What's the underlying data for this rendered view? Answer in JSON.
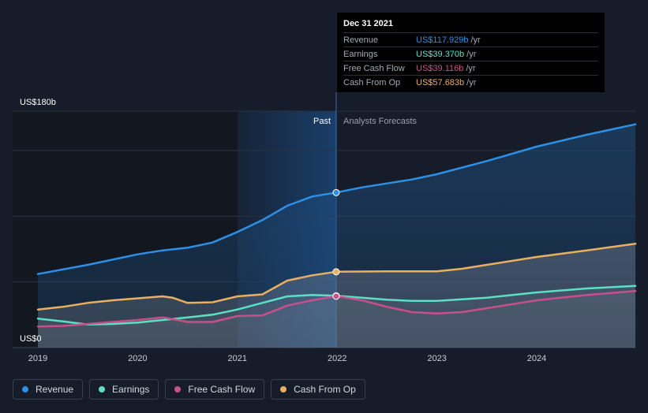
{
  "chart_data": {
    "type": "area",
    "x_ticks": [
      "2019",
      "2020",
      "2021",
      "2022",
      "2023",
      "2024"
    ],
    "y_labels": {
      "top": "US$180b",
      "bottom": "US$0"
    },
    "ylim": [
      0,
      180
    ],
    "past_label": "Past",
    "forecast_label": "Analysts Forecasts",
    "divider_date": 2021.99,
    "series": [
      {
        "name": "Revenue",
        "color": "#2d8fe6",
        "points": [
          [
            2019.0,
            56
          ],
          [
            2019.5,
            63
          ],
          [
            2020.0,
            71
          ],
          [
            2020.25,
            74
          ],
          [
            2020.5,
            76
          ],
          [
            2020.75,
            80
          ],
          [
            2021.0,
            88
          ],
          [
            2021.25,
            97
          ],
          [
            2021.5,
            108
          ],
          [
            2021.75,
            115
          ],
          [
            2021.99,
            118
          ],
          [
            2022.25,
            122
          ],
          [
            2022.5,
            125
          ],
          [
            2022.75,
            128
          ],
          [
            2023.0,
            132
          ],
          [
            2023.5,
            142
          ],
          [
            2024.0,
            153
          ],
          [
            2024.5,
            162
          ],
          [
            2024.99,
            170
          ]
        ]
      },
      {
        "name": "Earnings",
        "color": "#5be0c4",
        "points": [
          [
            2019.0,
            22
          ],
          [
            2019.25,
            20
          ],
          [
            2019.5,
            17.5
          ],
          [
            2019.75,
            18
          ],
          [
            2020.0,
            19
          ],
          [
            2020.25,
            21
          ],
          [
            2020.5,
            23
          ],
          [
            2020.75,
            25
          ],
          [
            2021.0,
            29
          ],
          [
            2021.25,
            34
          ],
          [
            2021.5,
            39
          ],
          [
            2021.75,
            40
          ],
          [
            2021.99,
            39.4
          ],
          [
            2022.25,
            38
          ],
          [
            2022.5,
            36.5
          ],
          [
            2022.75,
            35.5
          ],
          [
            2023.0,
            35.5
          ],
          [
            2023.5,
            38
          ],
          [
            2024.0,
            42
          ],
          [
            2024.5,
            45
          ],
          [
            2024.99,
            47
          ]
        ]
      },
      {
        "name": "Free Cash Flow",
        "color": "#c8508a",
        "points": [
          [
            2019.0,
            16
          ],
          [
            2019.25,
            16.5
          ],
          [
            2019.5,
            18
          ],
          [
            2019.75,
            19.5
          ],
          [
            2020.0,
            21
          ],
          [
            2020.25,
            23
          ],
          [
            2020.4,
            21
          ],
          [
            2020.5,
            19.5
          ],
          [
            2020.75,
            19.5
          ],
          [
            2021.0,
            24
          ],
          [
            2021.25,
            24.5
          ],
          [
            2021.5,
            32
          ],
          [
            2021.75,
            36
          ],
          [
            2021.99,
            39.1
          ],
          [
            2022.25,
            36
          ],
          [
            2022.5,
            31
          ],
          [
            2022.75,
            27
          ],
          [
            2023.0,
            26
          ],
          [
            2023.25,
            27
          ],
          [
            2023.5,
            30
          ],
          [
            2024.0,
            36
          ],
          [
            2024.5,
            40
          ],
          [
            2024.99,
            43
          ]
        ]
      },
      {
        "name": "Cash From Op",
        "color": "#e8b060",
        "points": [
          [
            2019.0,
            29
          ],
          [
            2019.25,
            31
          ],
          [
            2019.5,
            34
          ],
          [
            2019.75,
            36
          ],
          [
            2020.0,
            37.5
          ],
          [
            2020.25,
            39
          ],
          [
            2020.35,
            38
          ],
          [
            2020.5,
            34
          ],
          [
            2020.75,
            34.5
          ],
          [
            2021.0,
            39
          ],
          [
            2021.25,
            40.5
          ],
          [
            2021.5,
            51
          ],
          [
            2021.75,
            55
          ],
          [
            2021.99,
            57.7
          ],
          [
            2022.5,
            58
          ],
          [
            2023.0,
            58
          ],
          [
            2023.25,
            60
          ],
          [
            2023.5,
            63
          ],
          [
            2024.0,
            69
          ],
          [
            2024.5,
            74
          ],
          [
            2024.99,
            79
          ]
        ]
      }
    ]
  },
  "tooltip": {
    "date": "Dec 31 2021",
    "unit": "/yr",
    "rows": [
      {
        "label": "Revenue",
        "value": "US$117.929b",
        "color": "#2d8fe6"
      },
      {
        "label": "Earnings",
        "value": "US$39.370b",
        "color": "#5be0c4"
      },
      {
        "label": "Free Cash Flow",
        "value": "US$39.116b",
        "color": "#c8508a"
      },
      {
        "label": "Cash From Op",
        "value": "US$57.683b",
        "color": "#e8b060"
      }
    ]
  },
  "legend": [
    {
      "label": "Revenue",
      "color": "#2d8fe6"
    },
    {
      "label": "Earnings",
      "color": "#5be0c4"
    },
    {
      "label": "Free Cash Flow",
      "color": "#c8508a"
    },
    {
      "label": "Cash From Op",
      "color": "#e8b060"
    }
  ]
}
